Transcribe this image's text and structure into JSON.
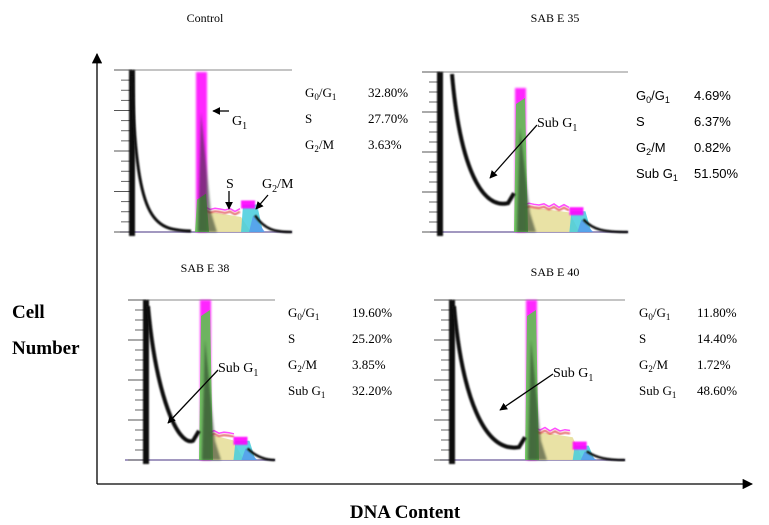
{
  "chart_data": {
    "type": "area",
    "figure_kind": "flow cytometry DNA content histograms (cell cycle)",
    "xlabel": "DNA Content",
    "ylabel": [
      "Cell",
      "Number"
    ],
    "grid": false,
    "panels": [
      {
        "title": "Control",
        "annotations": [
          {
            "text": "G",
            "sub": "1",
            "target": "G1 peak"
          },
          {
            "text": "S",
            "sub": "",
            "target": "S phase"
          },
          {
            "text": "G",
            "sub": "2",
            "suffix": "/M",
            "target": "G2/M peak"
          }
        ],
        "stats": [
          {
            "label": "G",
            "sub0": "0",
            "mid": "/G",
            "sub1": "1",
            "value": "32.80%"
          },
          {
            "label": "S",
            "sub0": "",
            "mid": "",
            "sub1": "",
            "value": "27.70%"
          },
          {
            "label": "G",
            "sub0": "2",
            "mid": "/M",
            "sub1": "",
            "value": "3.63%"
          }
        ],
        "stats_font": "serif",
        "percentages": {
          "G0/G1": 32.8,
          "S": 27.7,
          "G2/M": 3.63
        }
      },
      {
        "title": "SAB E 35",
        "annotations": [
          {
            "text": "Sub G",
            "sub": "1",
            "target": "Sub G1 region"
          }
        ],
        "stats": [
          {
            "label": "G",
            "sub0": "0",
            "mid": "/G",
            "sub1": "1",
            "value": "4.69%"
          },
          {
            "label": "S",
            "sub0": "",
            "mid": "",
            "sub1": "",
            "value": "6.37%"
          },
          {
            "label": "G",
            "sub0": "2",
            "mid": "/M",
            "sub1": "",
            "value": "0.82%"
          },
          {
            "label": "Sub G",
            "sub0": "",
            "mid": "",
            "sub1": "1",
            "value": "51.50%"
          }
        ],
        "stats_font": "sans",
        "percentages": {
          "G0/G1": 4.69,
          "S": 6.37,
          "G2/M": 0.82,
          "Sub G1": 51.5
        }
      },
      {
        "title": "SAB E 38",
        "annotations": [
          {
            "text": "Sub G",
            "sub": "1",
            "target": "Sub G1 region"
          }
        ],
        "stats": [
          {
            "label": "G",
            "sub0": "0",
            "mid": "/G",
            "sub1": "1",
            "value": "19.60%"
          },
          {
            "label": "S",
            "sub0": "",
            "mid": "",
            "sub1": "",
            "value": "25.20%"
          },
          {
            "label": "G",
            "sub0": "2",
            "mid": "/M",
            "sub1": "",
            "value": "3.85%"
          },
          {
            "label": "Sub G",
            "sub0": "",
            "mid": "",
            "sub1": "1",
            "value": "32.20%"
          }
        ],
        "stats_font": "serif",
        "percentages": {
          "G0/G1": 19.6,
          "S": 25.2,
          "G2/M": 3.85,
          "Sub G1": 32.2
        }
      },
      {
        "title": "SAB E 40",
        "annotations": [
          {
            "text": "Sub G",
            "sub": "1",
            "target": "Sub G1 region"
          }
        ],
        "stats": [
          {
            "label": "G",
            "sub0": "0",
            "mid": "/G",
            "sub1": "1",
            "value": "11.80%"
          },
          {
            "label": "S",
            "sub0": "",
            "mid": "",
            "sub1": "",
            "value": "14.40%"
          },
          {
            "label": "G",
            "sub0": "2",
            "mid": "/M",
            "sub1": "",
            "value": "1.72%"
          },
          {
            "label": "Sub G",
            "sub0": "",
            "mid": "",
            "sub1": "1",
            "value": "48.60%"
          }
        ],
        "stats_font": "serif",
        "percentages": {
          "G0/G1": 11.8,
          "S": 14.4,
          "G2/M": 1.72,
          "Sub G1": 48.6
        }
      }
    ]
  },
  "colors": {
    "g1_peak": "#ff00ff",
    "g1_fill": "#55cc44",
    "s_fill": "#e8e0a0",
    "s_outline": "#e05050",
    "g2_fill": "#44ccdd",
    "g2_fill_blue": "#5599ee",
    "histogram_line": "#111111",
    "frame": "#888888"
  }
}
